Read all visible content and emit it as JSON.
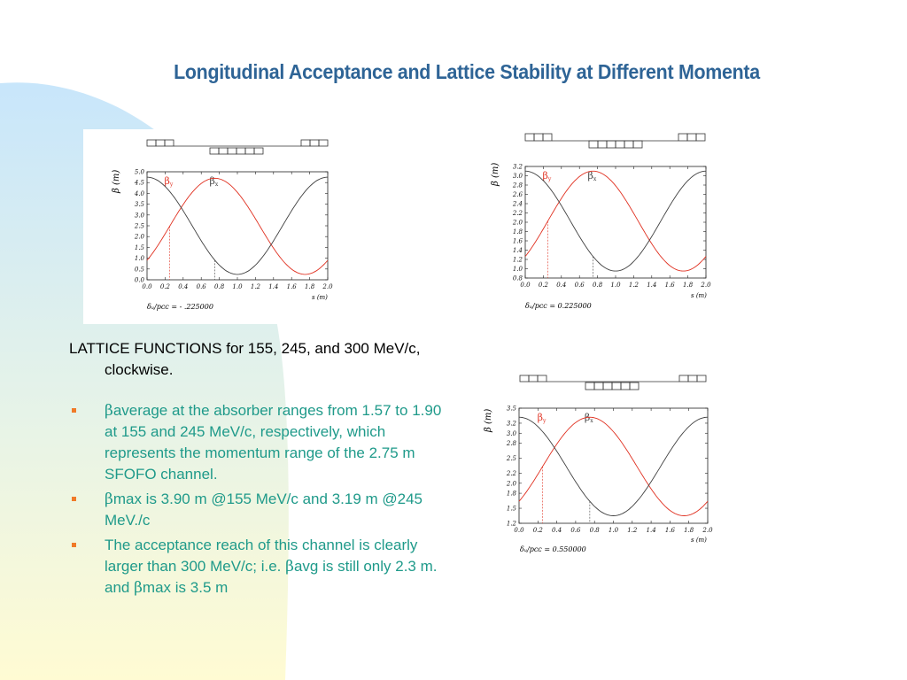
{
  "slide": {
    "title": "Longitudinal Acceptance and Lattice Stability at Different Momenta",
    "lead_text": "LATTICE FUNCTIONS for 155, 245, and 300 MeV/c, clockwise.",
    "bullets": [
      {
        "beta": "β",
        "text": "average at the absorber ranges from 1.57 to 1.90 at 155 and 245 MeV/c, respectively, which represents the momentum range of the 2.75 m SFOFO channel."
      },
      {
        "beta": "β",
        "text": "max is  3.90 m @155 MeV/c and 3.19 m @245 MeV./c"
      },
      {
        "text_a": "The acceptance reach of this channel is clearly larger than 300 MeV/c;  i.e. ",
        "beta_a": "β",
        "text_b": "avg is still only 2.3 m. and ",
        "beta_b": "β",
        "text_c": "max is 3.5 m"
      }
    ]
  },
  "colors": {
    "title": "#2e6496",
    "bullet_text": "#1f9a8a",
    "bullet_marker": "#f07a28",
    "beta_y_curve": "#e03020",
    "beta_x_curve": "#404040",
    "bg_blue": "#cfe8f8",
    "bg_yellow": "#fffbd8"
  },
  "chart_data": [
    {
      "type": "line",
      "xlabel": "s (m)",
      "ylabel": "β (m)",
      "xlim": [
        0.0,
        2.0
      ],
      "ylim": [
        0.0,
        5.0
      ],
      "x_ticks": [
        "0.0",
        "0.2",
        "0.4",
        "0.6",
        "0.8",
        "1.0",
        "1.2",
        "1.4",
        "1.6",
        "1.8",
        "2.0"
      ],
      "y_ticks": [
        "0.0",
        "0.5",
        "1.0",
        "1.5",
        "2.0",
        "2.5",
        "3.0",
        "3.5",
        "4.0",
        "4.5",
        "5.0"
      ],
      "series": [
        {
          "name": "βy",
          "color": "#e03020",
          "min": 0.25,
          "max": 4.7,
          "peak_at": 0.75
        },
        {
          "name": "βx",
          "color": "#404040",
          "min": 0.25,
          "max": 4.75,
          "peak_at": 2.0
        }
      ],
      "markers": [
        0.25,
        0.75
      ],
      "caption": "δᵤ/pᴄᴄ  =  - .225000"
    },
    {
      "type": "line",
      "xlabel": "s (m)",
      "ylabel": "β (m)",
      "xlim": [
        0.0,
        2.0
      ],
      "ylim": [
        0.8,
        3.2
      ],
      "x_ticks": [
        "0.0",
        "0.2",
        "0.4",
        "0.6",
        "0.8",
        "1.0",
        "1.2",
        "1.4",
        "1.6",
        "1.8",
        "2.0"
      ],
      "y_ticks": [
        "0.8",
        "1.0",
        "1.2",
        "1.4",
        "1.6",
        "1.8",
        "2.0",
        "2.2",
        "2.4",
        "2.6",
        "2.8",
        "3.0",
        "3.2"
      ],
      "series": [
        {
          "name": "βy",
          "color": "#e03020",
          "min": 0.95,
          "max": 3.1,
          "peak_at": 0.75
        },
        {
          "name": "βx",
          "color": "#404040",
          "min": 0.95,
          "max": 3.1,
          "peak_at": 2.0
        }
      ],
      "markers": [
        0.25,
        0.75
      ],
      "caption": "δᵤ/pᴄᴄ  =  0.225000"
    },
    {
      "type": "line",
      "xlabel": "s (m)",
      "ylabel": "β (m)",
      "xlim": [
        0.0,
        2.0
      ],
      "ylim": [
        1.2,
        3.5
      ],
      "x_ticks": [
        "0.0",
        "0.2",
        "0.4",
        "0.6",
        "0.8",
        "1.0",
        "1.2",
        "1.4",
        "1.6",
        "1.8",
        "2.0"
      ],
      "y_ticks": [
        "1.2",
        "1.5",
        "1.8",
        "2.0",
        "2.2",
        "2.5",
        "2.8",
        "3.0",
        "3.2",
        "3.5"
      ],
      "series": [
        {
          "name": "βy",
          "color": "#e03020",
          "min": 1.35,
          "max": 3.32,
          "peak_at": 0.75
        },
        {
          "name": "βx",
          "color": "#404040",
          "min": 1.35,
          "max": 3.32,
          "peak_at": 2.0
        }
      ],
      "markers": [
        0.25,
        0.75
      ],
      "caption": "δᵤ/pᴄᴄ  =  0.550000"
    }
  ]
}
